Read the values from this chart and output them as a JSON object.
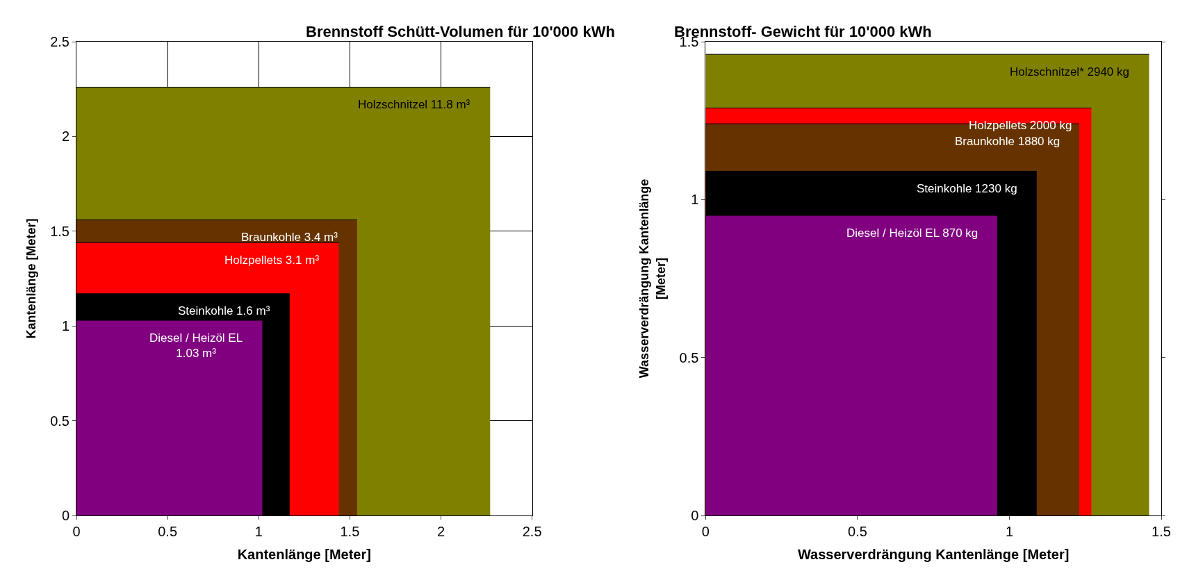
{
  "chart_data": [
    {
      "type": "area",
      "title": "Brennstoff Schütt-Volumen für 10'000 kWh",
      "xlabel": "Kantenlänge [Meter]",
      "ylabel": "Kantenlänge [Meter]",
      "xlim": [
        0,
        2.5
      ],
      "ylim": [
        0,
        2.5
      ],
      "xticks": [
        0,
        0.5,
        1,
        1.5,
        2,
        2.5
      ],
      "yticks": [
        0,
        0.5,
        1,
        1.5,
        2,
        2.5
      ],
      "grid": true,
      "series": [
        {
          "name": "Holzschnitzel 11.8 m³",
          "color": "#808000",
          "x": [
            0,
            2.27
          ],
          "values": [
            2.26,
            2.26
          ]
        },
        {
          "name": "Braunkohle 3.4 m³",
          "color": "#663300",
          "x": [
            0,
            1.54
          ],
          "values": [
            1.56,
            1.56
          ]
        },
        {
          "name": "Holzpellets 3.1 m³",
          "color": "#ff0000",
          "x": [
            0,
            1.44
          ],
          "values": [
            1.44,
            1.44
          ]
        },
        {
          "name": "Steinkohle 1.6 m³",
          "color": "#000000",
          "x": [
            0,
            1.17
          ],
          "values": [
            1.17,
            1.17
          ]
        },
        {
          "name": "Diesel / Heizöl EL\n1.03 m³",
          "color": "#800080",
          "x": [
            0,
            1.02
          ],
          "values": [
            1.03,
            1.03
          ]
        }
      ]
    },
    {
      "type": "area",
      "title": "Brennstoff- Gewicht für 10'000 kWh",
      "xlabel": "Wasserverdrängung Kantenlänge [Meter]",
      "ylabel": "Wasserverdrängung Kantenlänge\n[Meter]",
      "xlim": [
        0,
        1.5
      ],
      "ylim": [
        0,
        1.5
      ],
      "xticks": [
        0,
        0.5,
        1,
        1.5
      ],
      "yticks": [
        0,
        0.5,
        1,
        1.5
      ],
      "grid": false,
      "series": [
        {
          "name": "Holzschnitzel* 2940 kg",
          "color": "#808000",
          "x": [
            0,
            1.46
          ],
          "values": [
            1.46,
            1.46
          ]
        },
        {
          "name": "Holzpellets 2000 kg",
          "color": "#ff0000",
          "x": [
            0,
            1.27
          ],
          "values": [
            1.29,
            1.29
          ]
        },
        {
          "name": "Braunkohle 1880 kg",
          "color": "#663300",
          "x": [
            0,
            1.23
          ],
          "values": [
            1.24,
            1.24
          ]
        },
        {
          "name": "Steinkohle 1230 kg",
          "color": "#000000",
          "x": [
            0,
            1.09
          ],
          "values": [
            1.09,
            1.09
          ]
        },
        {
          "name": "Diesel / Heizöl EL 870 kg",
          "color": "#800080",
          "x": [
            0,
            0.96
          ],
          "values": [
            0.95,
            0.95
          ]
        }
      ]
    }
  ]
}
